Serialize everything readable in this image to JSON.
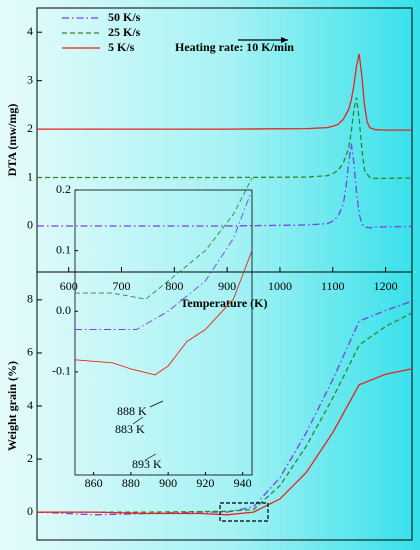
{
  "chart_data": [
    {
      "type": "line",
      "ylabel": "DTA (mw/mg)",
      "xlabel": "Temperature (K)",
      "xlim": [
        540,
        1250
      ],
      "xticks": [
        600,
        700,
        800,
        900,
        1000,
        1100,
        1200
      ],
      "ylim": [
        -0.95,
        4.5
      ],
      "yticks": [
        0,
        1,
        2,
        3,
        4
      ],
      "annotation": "Heating rate: 10 K/min",
      "series": [
        {
          "name": "50 K/s",
          "color": "#7b3fe4",
          "dash": "dashdot",
          "x": [
            540,
            700,
            900,
            1050,
            1090,
            1100,
            1110,
            1120,
            1125,
            1130,
            1135,
            1140,
            1145,
            1150,
            1155,
            1160,
            1170,
            1180,
            1250
          ],
          "values": [
            0,
            0,
            0,
            0.02,
            0.05,
            0.1,
            0.2,
            0.45,
            0.8,
            1.3,
            1.7,
            1.3,
            0.7,
            0.25,
            0.05,
            -0.02,
            -0.04,
            -0.02,
            -0.01
          ]
        },
        {
          "name": "25 K/s",
          "color": "#2a8a2a",
          "dash": "dashed",
          "x": [
            540,
            700,
            900,
            1050,
            1090,
            1100,
            1110,
            1120,
            1130,
            1135,
            1140,
            1145,
            1150,
            1155,
            1160,
            1170,
            1180,
            1250
          ],
          "values": [
            1,
            1,
            1,
            1.01,
            1.04,
            1.08,
            1.15,
            1.3,
            1.6,
            1.95,
            2.4,
            2.65,
            2.2,
            1.6,
            1.15,
            1.0,
            0.98,
            0.99
          ]
        },
        {
          "name": "5 K/s",
          "color": "#e8231a",
          "dash": "solid",
          "x": [
            540,
            700,
            900,
            1050,
            1090,
            1100,
            1110,
            1120,
            1130,
            1135,
            1140,
            1145,
            1150,
            1155,
            1160,
            1165,
            1170,
            1180,
            1200,
            1250
          ],
          "values": [
            2,
            2,
            2,
            2.01,
            2.03,
            2.06,
            2.1,
            2.2,
            2.4,
            2.6,
            2.9,
            3.3,
            3.55,
            3.1,
            2.5,
            2.15,
            2.03,
            1.99,
            1.98,
            1.98
          ]
        }
      ]
    },
    {
      "type": "line",
      "ylabel": "Weight grain (%)",
      "xlim": [
        540,
        1250
      ],
      "ylim": [
        -1.05,
        9.05
      ],
      "yticks": [
        0,
        2,
        4,
        6,
        8
      ],
      "series": [
        {
          "name": "50 K/s",
          "color": "#7b3fe4",
          "dash": "dashdot",
          "x": [
            540,
            650,
            750,
            850,
            900,
            950,
            1000,
            1050,
            1100,
            1150,
            1200,
            1250
          ],
          "values": [
            0,
            -0.1,
            -0.05,
            0,
            0,
            0.2,
            1.3,
            3.0,
            5.0,
            7.2,
            7.6,
            7.95
          ]
        },
        {
          "name": "25 K/s",
          "color": "#2a8a2a",
          "dash": "dashed",
          "x": [
            540,
            650,
            750,
            850,
            900,
            950,
            1000,
            1050,
            1100,
            1150,
            1200,
            1250
          ],
          "values": [
            0,
            0,
            0,
            0.02,
            0.03,
            0.1,
            1.0,
            2.5,
            4.3,
            6.3,
            7.0,
            7.5
          ]
        },
        {
          "name": "5 K/s",
          "color": "#e8231a",
          "dash": "solid",
          "x": [
            540,
            650,
            750,
            850,
            900,
            950,
            1000,
            1050,
            1100,
            1150,
            1200,
            1250
          ],
          "values": [
            0,
            0,
            -0.05,
            -0.05,
            -0.1,
            0,
            0.5,
            1.5,
            3.0,
            4.8,
            5.2,
            5.4
          ]
        }
      ]
    },
    {
      "type": "line",
      "xlim": [
        850,
        945
      ],
      "xticks": [
        860,
        880,
        900,
        920,
        940
      ],
      "ylim": [
        -0.27,
        0.2
      ],
      "yticks": [
        {
          "value": -0.1,
          "label": "-0.1"
        },
        {
          "value": 0,
          "label": "0.0"
        },
        0.1,
        0.2
      ],
      "annotations": [
        "888 K",
        "883 K",
        "893 K"
      ],
      "series": [
        {
          "name": "50 K/s",
          "color": "#7b3fe4",
          "dash": "dashdot",
          "x": [
            850,
            870,
            883,
            900,
            920,
            935,
            945
          ],
          "values": [
            -0.03,
            -0.03,
            -0.03,
            0,
            0.05,
            0.12,
            0.2
          ]
        },
        {
          "name": "25 K/s",
          "color": "#2a8a2a",
          "dash": "dashed",
          "x": [
            850,
            870,
            888,
            900,
            920,
            935,
            945
          ],
          "values": [
            0.03,
            0.03,
            0.02,
            0.05,
            0.1,
            0.16,
            0.22
          ]
        },
        {
          "name": "5 K/s",
          "color": "#e8231a",
          "dash": "solid",
          "x": [
            850,
            870,
            880,
            893,
            900,
            910,
            920,
            935,
            945
          ],
          "values": [
            -0.08,
            -0.085,
            -0.095,
            -0.105,
            -0.09,
            -0.05,
            -0.03,
            0.02,
            0.1
          ]
        }
      ]
    }
  ]
}
